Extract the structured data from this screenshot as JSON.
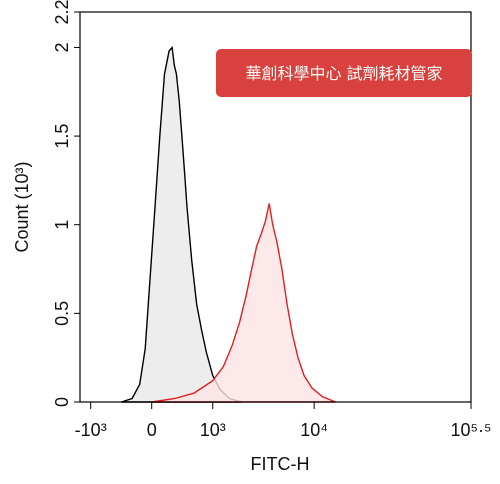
{
  "chart_data": {
    "type": "histogram-overlay",
    "ylabel": "Count (10³)",
    "xlabel": "FITC-H",
    "annotation": "華創科學中心 試劑耗材管家",
    "xscale": "biexponential",
    "xlim": [
      -1300,
      316228
    ],
    "xticks": [
      {
        "value": -1000,
        "label": "-10³"
      },
      0,
      {
        "value": 1000,
        "label": "10³"
      },
      {
        "value": 10000,
        "label": "10⁴"
      },
      {
        "value": 316228,
        "label": "10⁵·⁵"
      }
    ],
    "ylim": [
      0,
      2.2
    ],
    "yticks": [
      0,
      0.5,
      1,
      1.5,
      2,
      2.2
    ],
    "series": [
      {
        "color": "#000000",
        "fill": "#e8e8e8",
        "x": [
          -400,
          -250,
          -150,
          -80,
          -20,
          40,
          100,
          160,
          220,
          260,
          290,
          320,
          360,
          400,
          440,
          480,
          560,
          650,
          750,
          850,
          1000,
          1200,
          1500,
          2000
        ],
        "values": [
          0,
          0.02,
          0.1,
          0.3,
          0.7,
          1.1,
          1.5,
          1.85,
          1.98,
          2.0,
          1.9,
          1.85,
          1.7,
          1.5,
          1.3,
          1.1,
          0.8,
          0.55,
          0.4,
          0.28,
          0.15,
          0.07,
          0.02,
          0
        ]
      },
      {
        "color": "#e02020",
        "fill": "#fde4e4",
        "x": [
          0,
          300,
          600,
          1000,
          1300,
          1600,
          1900,
          2200,
          2500,
          2800,
          3100,
          3400,
          3700,
          4000,
          4400,
          4900,
          5500,
          6200,
          7000,
          8000,
          9500,
          12000,
          16000
        ],
        "values": [
          0,
          0.02,
          0.05,
          0.12,
          0.2,
          0.32,
          0.45,
          0.6,
          0.75,
          0.88,
          0.95,
          1.02,
          1.12,
          1.0,
          0.9,
          0.75,
          0.55,
          0.38,
          0.25,
          0.15,
          0.08,
          0.03,
          0
        ]
      }
    ]
  }
}
